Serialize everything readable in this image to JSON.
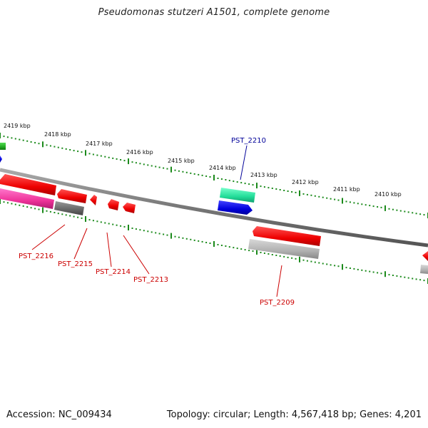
{
  "title": "Pseudomonas stutzeri A1501, complete genome",
  "footer": {
    "accession": "Accession: NC_009434",
    "summary": "Topology: circular; Length: 4,567,418 bp; Genes: 4,201"
  },
  "scale_labels": [
    "2419 kbp",
    "2418 kbp",
    "2417 kbp",
    "2416 kbp",
    "2415 kbp",
    "2414 kbp",
    "2413 kbp",
    "2412 kbp",
    "2411 kbp",
    "2410 kbp"
  ],
  "gene_labels": {
    "pst_2210": "PST_2210",
    "pst_2216": "PST_2216",
    "pst_2215": "PST_2215",
    "pst_2214": "PST_2214",
    "pst_2213": "PST_2213",
    "pst_2209": "PST_2209"
  },
  "colors": {
    "backbone": "#777777",
    "tick": "#1b8a1b",
    "gene_red": "#ee0000",
    "gene_pink": "#ee3399",
    "gene_gray": "#666666",
    "gene_lightgray": "#b0b0b0",
    "gene_blue": "#0000dd",
    "gene_teal": "#22dd99",
    "gene_green": "#22aa22",
    "label_red": "#cc0000",
    "label_blue": "#000099"
  }
}
